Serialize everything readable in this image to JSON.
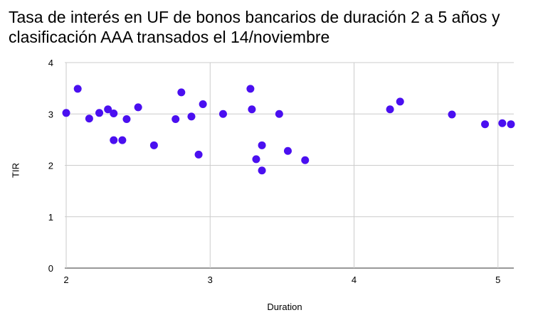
{
  "chart_data": {
    "type": "scatter",
    "title": "Tasa de interés en UF de bonos bancarios de duración 2 a 5 años y clasificación AAA transados el 14/noviembre",
    "xlabel": "Duration",
    "ylabel": "TIR",
    "xlim": [
      1.99,
      5.11
    ],
    "ylim": [
      0,
      4
    ],
    "xticks": [
      2,
      3,
      4,
      5
    ],
    "yticks": [
      0,
      1,
      2,
      3,
      4
    ],
    "grid": true,
    "legend": "none",
    "marker_color": "#4a0ff0",
    "points": [
      {
        "x": 2.0,
        "y": 3.02
      },
      {
        "x": 2.08,
        "y": 3.49
      },
      {
        "x": 2.16,
        "y": 2.91
      },
      {
        "x": 2.23,
        "y": 3.02
      },
      {
        "x": 2.29,
        "y": 3.09
      },
      {
        "x": 2.33,
        "y": 3.01
      },
      {
        "x": 2.33,
        "y": 2.49
      },
      {
        "x": 2.39,
        "y": 2.49
      },
      {
        "x": 2.42,
        "y": 2.9
      },
      {
        "x": 2.5,
        "y": 3.13
      },
      {
        "x": 2.61,
        "y": 2.39
      },
      {
        "x": 2.76,
        "y": 2.9
      },
      {
        "x": 2.8,
        "y": 3.42
      },
      {
        "x": 2.87,
        "y": 2.95
      },
      {
        "x": 2.92,
        "y": 2.21
      },
      {
        "x": 2.95,
        "y": 3.19
      },
      {
        "x": 3.09,
        "y": 3.0
      },
      {
        "x": 3.28,
        "y": 3.49
      },
      {
        "x": 3.29,
        "y": 3.09
      },
      {
        "x": 3.32,
        "y": 2.12
      },
      {
        "x": 3.36,
        "y": 2.39
      },
      {
        "x": 3.36,
        "y": 1.9
      },
      {
        "x": 3.48,
        "y": 3.0
      },
      {
        "x": 3.54,
        "y": 2.28
      },
      {
        "x": 3.66,
        "y": 2.1
      },
      {
        "x": 4.25,
        "y": 3.09
      },
      {
        "x": 4.32,
        "y": 3.24
      },
      {
        "x": 4.68,
        "y": 2.99
      },
      {
        "x": 4.91,
        "y": 2.8
      },
      {
        "x": 5.03,
        "y": 2.82
      },
      {
        "x": 5.09,
        "y": 2.8
      }
    ]
  }
}
